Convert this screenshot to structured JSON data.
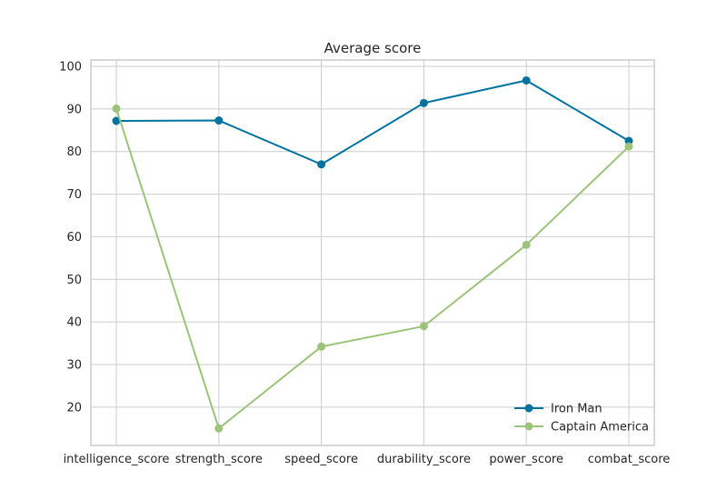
{
  "chart_data": {
    "type": "line",
    "title": "Average score",
    "xlabel": "",
    "ylabel": "",
    "categories": [
      "intelligence_score",
      "strength_score",
      "speed_score",
      "durability_score",
      "power_score",
      "combat_score"
    ],
    "series": [
      {
        "name": "Iron Man",
        "color": "#0072a0",
        "values": [
          87.2,
          87.3,
          77.0,
          91.4,
          96.7,
          82.5
        ]
      },
      {
        "name": "Captain America",
        "color": "#9bc47a",
        "values": [
          90.1,
          15.0,
          34.2,
          39.0,
          58.1,
          81.2
        ]
      }
    ],
    "ylim": [
      11,
      101.5
    ],
    "yticks": [
      20,
      30,
      40,
      50,
      60,
      70,
      80,
      90,
      100
    ],
    "grid": true,
    "legend_position": "bottom-right"
  }
}
